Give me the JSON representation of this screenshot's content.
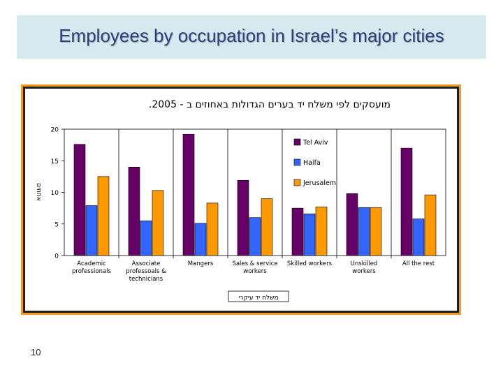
{
  "slide": {
    "title": "Employees by occupation in Israel’s major cities",
    "page_number": "10"
  },
  "colors": {
    "title_band": "#d6e9ef",
    "title_text": "#2a3f7f",
    "frame_orange": "#f59a1b",
    "Tel Aviv": "#660066",
    "Haifa": "#3366ff",
    "Jerusalem": "#ff9900"
  },
  "chart_data": {
    "type": "bar",
    "title": "מועסקים לפי משלח יד בערים הגדולות באחוזים ב - 2005.",
    "xlabel": "משלח יד עיקרי",
    "ylabel": "אחוזים",
    "ylim": [
      0,
      20
    ],
    "yticks": [
      0,
      5,
      10,
      15,
      20
    ],
    "legend_position": "top-right",
    "grid": false,
    "categories": [
      "Academic professionals",
      "Associate professoals & technicians",
      "Mangers",
      "Sales & service workers",
      "Skilled workers",
      "Unskilled workers",
      "All the rest"
    ],
    "series": [
      {
        "name": "Tel Aviv",
        "values": [
          17.6,
          14.0,
          19.2,
          11.9,
          7.5,
          9.8,
          17.0
        ]
      },
      {
        "name": "Haifa",
        "values": [
          7.9,
          5.5,
          5.1,
          6.0,
          6.6,
          7.6,
          5.8
        ]
      },
      {
        "name": "Jerusalem",
        "values": [
          12.5,
          10.3,
          8.3,
          9.0,
          7.7,
          7.6,
          9.6
        ]
      }
    ]
  }
}
